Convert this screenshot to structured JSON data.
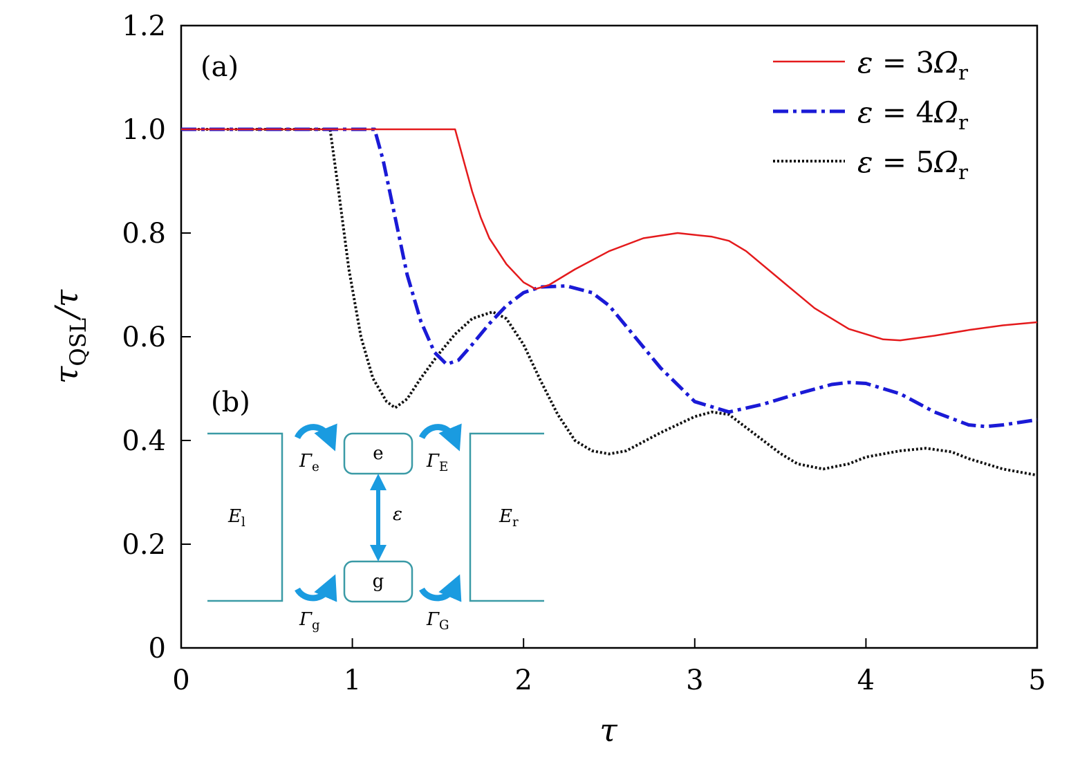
{
  "chart_data": {
    "type": "line",
    "xlabel": "τ",
    "ylabel": {
      "base": "τ",
      "sub": "QSL",
      "rest": "/τ"
    },
    "xlim": [
      0,
      5
    ],
    "ylim": [
      0,
      1.2
    ],
    "xticks": [
      0,
      1,
      2,
      3,
      4,
      5
    ],
    "xtick_labels": [
      "0",
      "1",
      "2",
      "3",
      "4",
      "5"
    ],
    "yticks": [
      0,
      0.2,
      0.4,
      0.6,
      0.8,
      1.0,
      1.2
    ],
    "ytick_labels": [
      "0",
      "0.2",
      "0.4",
      "0.6",
      "0.8",
      "1.0",
      "1.2"
    ],
    "grid": false,
    "legend_position": "top-right",
    "panel_labels": [
      "(a)",
      "(b)"
    ],
    "series": [
      {
        "name": "ε = 3Ω_r",
        "label": {
          "lhs": "ε",
          "eq": " = 3",
          "sym": "Ω",
          "sub": "r"
        },
        "color": "#e41a1c",
        "style": "solid",
        "x": [
          0,
          1.6,
          1.65,
          1.7,
          1.75,
          1.8,
          1.9,
          2.0,
          2.07,
          2.15,
          2.3,
          2.5,
          2.7,
          2.9,
          3.1,
          3.2,
          3.3,
          3.5,
          3.7,
          3.9,
          4.1,
          4.2,
          4.4,
          4.6,
          4.8,
          5.0
        ],
        "y": [
          1.0,
          1.0,
          0.94,
          0.88,
          0.83,
          0.79,
          0.74,
          0.705,
          0.692,
          0.7,
          0.73,
          0.765,
          0.79,
          0.8,
          0.793,
          0.785,
          0.765,
          0.71,
          0.655,
          0.615,
          0.595,
          0.593,
          0.602,
          0.613,
          0.622,
          0.628
        ]
      },
      {
        "name": "ε = 4Ω_r",
        "label": {
          "lhs": "ε",
          "eq": " = 4",
          "sym": "Ω",
          "sub": "r"
        },
        "color": "#1a1ad6",
        "style": "dashdot",
        "x": [
          0,
          1.13,
          1.18,
          1.25,
          1.32,
          1.4,
          1.48,
          1.55,
          1.62,
          1.7,
          1.8,
          1.9,
          2.0,
          2.1,
          2.25,
          2.4,
          2.5,
          2.6,
          2.8,
          3.0,
          3.2,
          3.4,
          3.6,
          3.8,
          3.9,
          4.0,
          4.2,
          4.4,
          4.6,
          4.7,
          4.8,
          5.0
        ],
        "y": [
          1.0,
          1.0,
          0.94,
          0.83,
          0.72,
          0.63,
          0.57,
          0.547,
          0.555,
          0.585,
          0.625,
          0.66,
          0.685,
          0.696,
          0.698,
          0.685,
          0.66,
          0.62,
          0.54,
          0.475,
          0.455,
          0.47,
          0.49,
          0.508,
          0.512,
          0.51,
          0.49,
          0.455,
          0.43,
          0.427,
          0.43,
          0.44
        ]
      },
      {
        "name": "ε = 5Ω_r",
        "label": {
          "lhs": "ε",
          "eq": " = 5",
          "sym": "Ω",
          "sub": "r"
        },
        "color": "#111111",
        "style": "dotted",
        "x": [
          0,
          0.87,
          0.92,
          0.98,
          1.05,
          1.12,
          1.2,
          1.25,
          1.32,
          1.4,
          1.5,
          1.6,
          1.7,
          1.82,
          1.9,
          2.0,
          2.1,
          2.2,
          2.3,
          2.4,
          2.5,
          2.6,
          2.8,
          3.0,
          3.1,
          3.2,
          3.3,
          3.5,
          3.6,
          3.75,
          3.9,
          4.0,
          4.2,
          4.35,
          4.5,
          4.6,
          4.8,
          5.0
        ],
        "y": [
          1.0,
          1.0,
          0.88,
          0.73,
          0.6,
          0.52,
          0.475,
          0.463,
          0.48,
          0.52,
          0.565,
          0.605,
          0.635,
          0.648,
          0.635,
          0.585,
          0.515,
          0.45,
          0.4,
          0.38,
          0.374,
          0.38,
          0.415,
          0.446,
          0.455,
          0.45,
          0.425,
          0.375,
          0.355,
          0.345,
          0.355,
          0.368,
          0.38,
          0.385,
          0.378,
          0.365,
          0.345,
          0.333
        ]
      }
    ],
    "inset": {
      "left_label": {
        "sym": "E",
        "sub": "l"
      },
      "right_label": {
        "sym": "E",
        "sub": "r"
      },
      "excited_state": "e",
      "ground_state": "g",
      "transition_label": "ε",
      "gamma_labels": [
        {
          "sym": "Γ",
          "sub": "e"
        },
        {
          "sym": "Γ",
          "sub": "E"
        },
        {
          "sym": "Γ",
          "sub": "g"
        },
        {
          "sym": "Γ",
          "sub": "G"
        }
      ],
      "line_color": "#3a9aa6",
      "arrow_color": "#1a9be0"
    }
  }
}
